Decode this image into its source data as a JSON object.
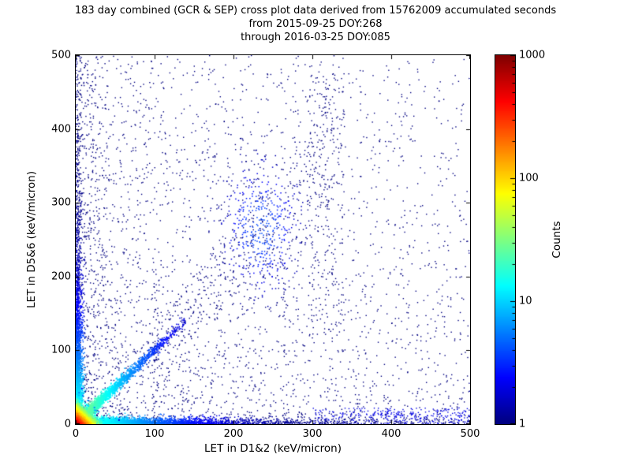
{
  "chart_data": {
    "type": "scatter",
    "title": "183 day combined (GCR & SEP) cross plot data derived from 15762009 accumulated seconds",
    "subtitle1": "from 2015-09-25 DOY:268",
    "subtitle2": "through 2016-03-25 DOY:085",
    "xlabel": "LET in D1&2 (keV/micron)",
    "ylabel": "LET in D5&6 (keV/micron)",
    "xlim": [
      0,
      500
    ],
    "ylim": [
      0,
      500
    ],
    "xticks": [
      0,
      100,
      200,
      300,
      400,
      500
    ],
    "yticks": [
      0,
      100,
      200,
      300,
      400,
      500
    ],
    "grid": false,
    "marker": "pixel",
    "colorbar": {
      "label": "Counts",
      "scale": "log",
      "min": 1,
      "max": 1000,
      "ticks": [
        1,
        10,
        100,
        1000
      ],
      "colormap": "jet"
    },
    "summary": "Density cross-plot of LET in detectors D1&2 vs D5&6. Extremely dense hot spot (counts approaching 1000, red/yellow) at the origin below ~20 keV/micron; cyan-green ridges hugging both axes and a band along the y=x diagonal out to ~120 keV/micron; sparse single-count (dark blue) events over the full 0-500 range, denser toward lower-left, with a loose clump near (235,265) and a vertical streak near x=300-340 reaching y~490.",
    "clusters": [
      {
        "name": "background-sparse",
        "kind": "power",
        "n": 3000,
        "exponent": 1.7,
        "count": 1,
        "size": 1.4
      },
      {
        "name": "top-scatter",
        "kind": "box",
        "n": 130,
        "x0": 60,
        "x1": 430,
        "y0": 330,
        "y1": 492,
        "count": 1,
        "size": 1.4
      },
      {
        "name": "far-right-sparse",
        "kind": "box",
        "n": 90,
        "x0": 350,
        "x1": 500,
        "y0": 20,
        "y1": 300,
        "count": 1,
        "size": 1.4
      },
      {
        "name": "upper-streak",
        "kind": "box",
        "n": 240,
        "x0": 295,
        "x1": 340,
        "y0": 120,
        "y1": 488,
        "count": 1,
        "size": 1.4
      },
      {
        "name": "vline-100",
        "kind": "box",
        "n": 60,
        "x0": 98,
        "x1": 106,
        "y0": 0,
        "y1": 210,
        "count": 1,
        "size": 1.4
      },
      {
        "name": "left-column",
        "kind": "box",
        "n": 200,
        "x0": 0,
        "x1": 40,
        "y0": 60,
        "y1": 498,
        "count": 1,
        "size": 1.4
      },
      {
        "name": "right-bottom",
        "kind": "box",
        "n": 320,
        "x0": 300,
        "x1": 500,
        "y0": 0,
        "y1": 22,
        "count": 2,
        "size": 1.4
      },
      {
        "name": "mid-cluster",
        "kind": "gauss",
        "n": 420,
        "cx": 235,
        "cy": 265,
        "sigma_x": 28,
        "sigma_y": 50,
        "count_max": 3,
        "size": 1.5
      },
      {
        "name": "diagonal-sparse",
        "kind": "diagbox",
        "n": 330,
        "x0": 90,
        "x1": 310,
        "slope_min": 0.8,
        "slope_max": 1.35,
        "count": 1,
        "size": 1.4
      },
      {
        "name": "y-axis-band",
        "kind": "vband",
        "n": 2600,
        "y_scale": 100,
        "x_sigma": 4,
        "count_max": 20,
        "count_decay": 60,
        "size": 1.5
      },
      {
        "name": "x-axis-band",
        "kind": "hband",
        "n": 3200,
        "x_scale": 90,
        "y_sigma": 4,
        "count_max": 25,
        "count_decay": 55,
        "size": 1.5
      },
      {
        "name": "diagonal-band",
        "kind": "diag",
        "n": 2600,
        "len_scale": 40,
        "len_max": 140,
        "spread": 4,
        "count_max": 40,
        "count_decay": 35,
        "size": 1.6
      },
      {
        "name": "origin-hotspot",
        "kind": "exp2",
        "n": 6000,
        "x_scale": 5,
        "y_scale": 5,
        "count_max": 900,
        "count_decay": 9,
        "size": 2
      }
    ]
  }
}
